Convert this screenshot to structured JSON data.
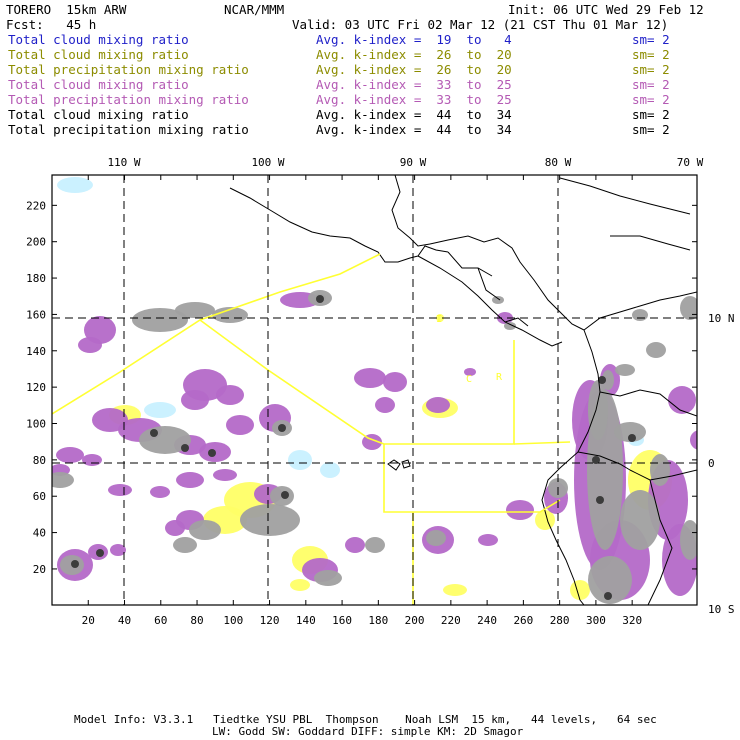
{
  "header": {
    "model": "TORERO  15km ARW",
    "org": "NCAR/MMM",
    "init": "Init: 06 UTC Wed 29 Feb 12",
    "fcst": "Fcst:   45 h",
    "valid": "Valid: 03 UTC Fri 02 Mar 12 (21 CST Thu 01 Mar 12)"
  },
  "legend": [
    {
      "field": "Total cloud mixing ratio",
      "kindex": "Avg. k-index =  19  to   4",
      "sm": "sm= 2",
      "color": "#1f1fc8"
    },
    {
      "field": "Total cloud mixing ratio",
      "kindex": "Avg. k-index =  26  to  20",
      "sm": "sm= 2",
      "color": "#8c8c00"
    },
    {
      "field": "Total precipitation mixing ratio",
      "kindex": "Avg. k-index =  26  to  20",
      "sm": "sm= 2",
      "color": "#8c8c00"
    },
    {
      "field": "Total cloud mixing ratio",
      "kindex": "Avg. k-index =  33  to  25",
      "sm": "sm= 2",
      "color": "#b45ab4"
    },
    {
      "field": "Total precipitation mixing ratio",
      "kindex": "Avg. k-index =  33  to  25",
      "sm": "sm= 2",
      "color": "#b45ab4"
    },
    {
      "field": "Total cloud mixing ratio",
      "kindex": "Avg. k-index =  44  to  34",
      "sm": "sm= 2",
      "color": "#000000"
    },
    {
      "field": "Total precipitation mixing ratio",
      "kindex": "Avg. k-index =  44  to  34",
      "sm": "sm= 2",
      "color": "#000000"
    }
  ],
  "map": {
    "x_ticks": [
      "20",
      "40",
      "60",
      "80",
      "100",
      "120",
      "140",
      "160",
      "180",
      "200",
      "220",
      "240",
      "260",
      "280",
      "300",
      "320"
    ],
    "y_ticks": [
      "20",
      "40",
      "60",
      "80",
      "100",
      "120",
      "140",
      "160",
      "180",
      "200",
      "220"
    ],
    "lon_labels": [
      "110 W",
      "100 W",
      "90 W",
      "80 W",
      "70 W"
    ],
    "lat_labels": [
      "10 N",
      "0",
      "10 S"
    ],
    "region_labels": [
      "I",
      "C",
      "R"
    ],
    "colors": {
      "cloud_cyan": "#c8f0ff",
      "yellow": "#ffff66",
      "purple": "#b469c8",
      "gray": "#a0a0a0",
      "dark": "#3c3c3c",
      "boundary": "#ffff33"
    }
  },
  "footer": {
    "line1": "Model Info: V3.3.1   Tiedtke YSU PBL  Thompson    Noah LSM  15 km,   44 levels,   64 sec",
    "line2": "LW: Godd SW: Goddard DIFF: simple KM: 2D Smagor"
  }
}
